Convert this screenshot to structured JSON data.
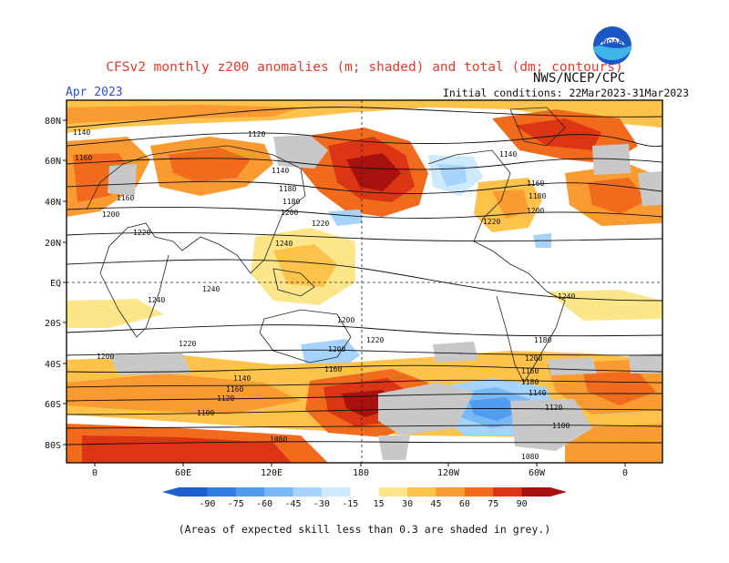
{
  "title": "CFSv2 monthly z200 anomalies (m; shaded) and total (dm; contours)",
  "source": "NWS/NCEP/CPC",
  "logo_text": "NOAA",
  "month": "Apr 2023",
  "initial_conditions": "Initial conditions: 22Mar2023-31Mar2023",
  "footnote": "(Areas of expected skill less than 0.3 are shaded in grey.)",
  "map": {
    "lat_labels": [
      "80N",
      "60N",
      "40N",
      "20N",
      "EQ",
      "20S",
      "40S",
      "60S",
      "80S"
    ],
    "lon_labels": [
      "0",
      "60E",
      "120E",
      "180",
      "120W",
      "60W",
      "0"
    ],
    "contour_labels": [
      "1140",
      "1120",
      "1160",
      "1140",
      "1180",
      "1160",
      "1200",
      "1180",
      "1200",
      "1220",
      "1220",
      "1240",
      "1220",
      "1240",
      "1240",
      "1240",
      "1200",
      "1220",
      "1220",
      "1200",
      "1200",
      "1160",
      "1180",
      "1140",
      "1160",
      "1120",
      "1140",
      "1100",
      "1120",
      "1100",
      "1080",
      "1080",
      "1140",
      "1160",
      "1180",
      "1200",
      "1160",
      "1180",
      "1200"
    ],
    "grey_note": "grey = expected skill < 0.3"
  },
  "colorbar": {
    "ticks": [
      "-90",
      "-75",
      "-60",
      "-45",
      "-30",
      "-15",
      "15",
      "30",
      "45",
      "60",
      "75",
      "90"
    ],
    "colors": [
      "#1e5fcf",
      "#2f7fe0",
      "#4f9cf0",
      "#79b8f7",
      "#a6d3fb",
      "#cde9fd",
      "#ffffff",
      "#fde68a",
      "#fcc24a",
      "#f99b30",
      "#f26a1b",
      "#dc3515",
      "#a8120e"
    ]
  },
  "chart_data": {
    "type": "heatmap",
    "variable": "z200 anomaly (m)",
    "contours": "total z200 (dm)",
    "color_levels": [
      -90,
      -75,
      -60,
      -45,
      -30,
      -15,
      15,
      30,
      45,
      60,
      75,
      90
    ],
    "xlabel": "",
    "ylabel": ""
  }
}
